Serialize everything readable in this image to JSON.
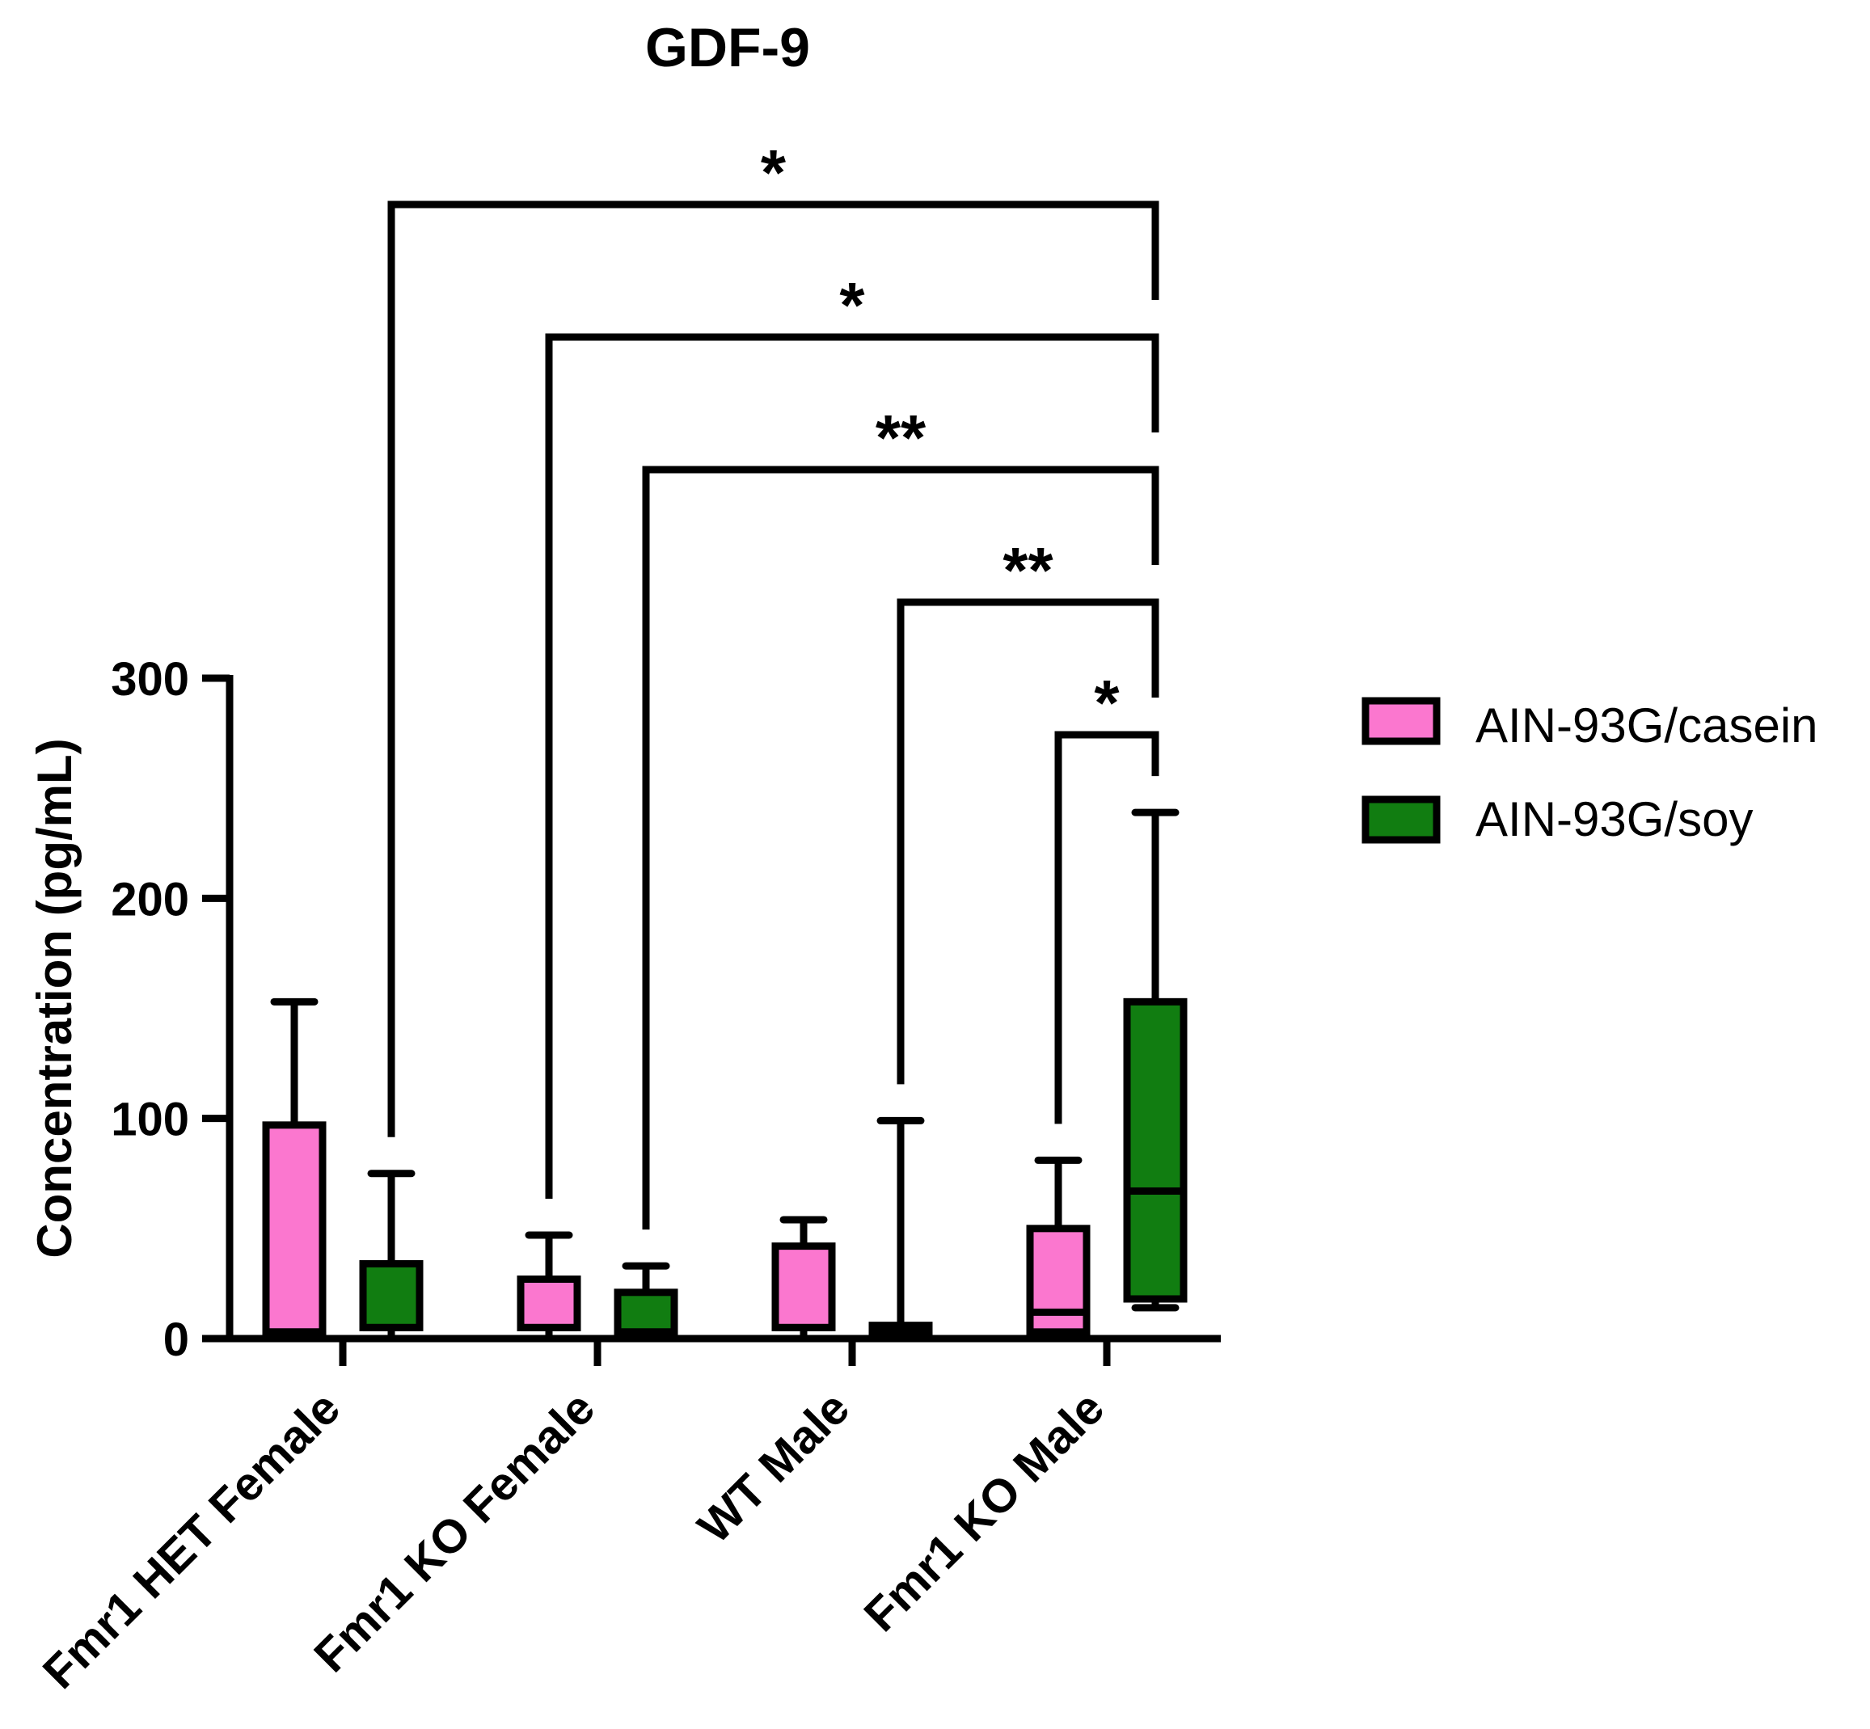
{
  "chart_data": {
    "type": "box",
    "title": "GDF-9",
    "xlabel": "",
    "ylabel": "Concentration (pg/mL)",
    "ylim": [
      0,
      300
    ],
    "yticks": [
      0,
      100,
      200,
      300
    ],
    "ytick_labels": [
      "0",
      "100",
      "200",
      "300"
    ],
    "categories": [
      "Fmr1 HET Female",
      "Fmr1 KO Female",
      "WT Male",
      "Fmr1 KO Male"
    ],
    "legend_position": "right",
    "series": [
      {
        "name": "AIN-93G/casein",
        "color": "#fb77cf",
        "boxes": [
          {
            "min": 0,
            "q1": 3,
            "median": 3,
            "q3": 97,
            "max": 153
          },
          {
            "min": 0,
            "q1": 5,
            "median": 5,
            "q3": 27,
            "max": 47
          },
          {
            "min": 0,
            "q1": 5,
            "median": 5,
            "q3": 42,
            "max": 54
          },
          {
            "min": 0,
            "q1": 3,
            "median": 12,
            "q3": 50,
            "max": 81
          }
        ]
      },
      {
        "name": "AIN-93G/soy",
        "color": "#117d11",
        "boxes": [
          {
            "min": 0,
            "q1": 5,
            "median": 5,
            "q3": 34,
            "max": 75
          },
          {
            "min": 0,
            "q1": 3,
            "median": 3,
            "q3": 21,
            "max": 33
          },
          {
            "min": 0,
            "q1": 3,
            "median": 3,
            "q3": 6,
            "max": 99
          },
          {
            "min": 14,
            "q1": 18,
            "median": 67,
            "q3": 153,
            "max": 239
          }
        ]
      }
    ],
    "significance": [
      {
        "label": "*",
        "from": "Fmr1 HET Female - AIN-93G/soy",
        "to": "Fmr1 KO Male - AIN-93G/soy"
      },
      {
        "label": "*",
        "from": "Fmr1 KO Female - AIN-93G/casein",
        "to": "Fmr1 KO Male - AIN-93G/soy"
      },
      {
        "label": "**",
        "from": "Fmr1 KO Female - AIN-93G/soy",
        "to": "Fmr1 KO Male - AIN-93G/soy"
      },
      {
        "label": "**",
        "from": "WT Male - AIN-93G/soy",
        "to": "Fmr1 KO Male - AIN-93G/soy"
      },
      {
        "label": "*",
        "from": "Fmr1 KO Male - AIN-93G/casein",
        "to": "Fmr1 KO Male - AIN-93G/soy"
      }
    ]
  }
}
